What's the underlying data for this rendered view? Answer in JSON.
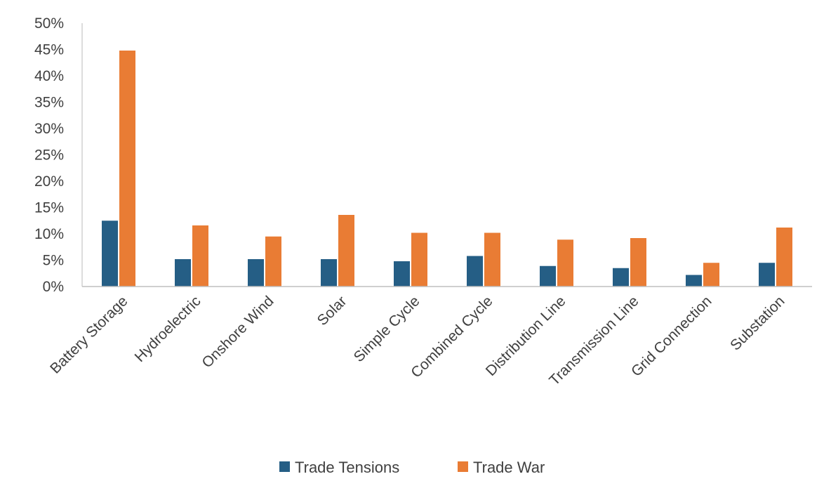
{
  "chart_data": {
    "type": "bar",
    "title": "",
    "xlabel": "",
    "ylabel": "",
    "categories": [
      "Battery Storage",
      "Hydroelectric",
      "Onshore Wind",
      "Solar",
      "Simple Cycle",
      "Combined Cycle",
      "Distribution Line",
      "Transmission Line",
      "Grid Connection",
      "Substation"
    ],
    "series": [
      {
        "name": "Trade Tensions",
        "color": "#255e85",
        "values": [
          12.5,
          5.2,
          5.2,
          5.2,
          4.8,
          5.8,
          3.9,
          3.5,
          2.2,
          4.5
        ]
      },
      {
        "name": "Trade War",
        "color": "#e97c34",
        "values": [
          44.8,
          11.6,
          9.5,
          13.6,
          10.2,
          10.2,
          8.9,
          9.2,
          4.5,
          11.2
        ]
      }
    ],
    "ylim": [
      0,
      50
    ],
    "y_ticks": [
      "0%",
      "5%",
      "10%",
      "15%",
      "20%",
      "25%",
      "30%",
      "35%",
      "40%",
      "45%",
      "50%"
    ],
    "y_tick_values": [
      0,
      5,
      10,
      15,
      20,
      25,
      30,
      35,
      40,
      45,
      50
    ],
    "grid": false,
    "legend_position": "bottom-center"
  }
}
